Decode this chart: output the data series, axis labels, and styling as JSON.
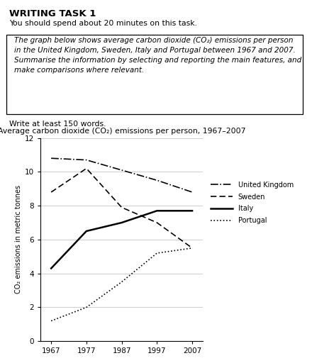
{
  "title_chart": "Average carbon dioxide (CO₂) emissions per person, 1967–2007",
  "ylabel": "CO₂ emissions in metric tonnes",
  "years": [
    1967,
    1977,
    1987,
    1997,
    2007
  ],
  "uk": [
    10.8,
    10.7,
    10.1,
    9.5,
    8.8
  ],
  "sweden": [
    8.8,
    10.2,
    7.9,
    7.0,
    5.5
  ],
  "italy": [
    4.3,
    6.5,
    7.0,
    7.7,
    7.7
  ],
  "portugal": [
    1.2,
    2.0,
    3.5,
    5.2,
    5.5
  ],
  "ylim": [
    0,
    12
  ],
  "yticks": [
    0,
    2,
    4,
    6,
    8,
    10,
    12
  ],
  "xticks": [
    1967,
    1977,
    1987,
    1997,
    2007
  ],
  "header_title": "WRITING TASK 1",
  "header_sub": "You should spend about 20 minutes on this task.",
  "box_line1": "The graph below shows average carbon dioxide (CO₂) emissions per person",
  "box_line2": "in the United Kingdom, Sweden, Italy and Portugal between 1967 and 2007.",
  "box_line3": "Summarise the information by selecting and reporting the main features, and",
  "box_line4": "make comparisons where relevant.",
  "footer": "Write at least 150 words.",
  "legend_labels": [
    "United Kingdom",
    "Sweden",
    "Italy",
    "Portugal"
  ],
  "bg_color": "#ffffff"
}
